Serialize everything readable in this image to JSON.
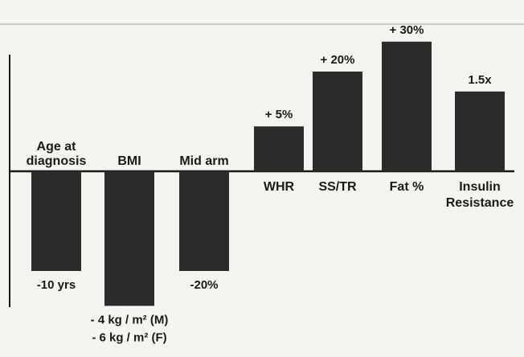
{
  "chart_data": {
    "type": "bar",
    "title": "",
    "xlabel": "",
    "ylabel": "",
    "baseline": 0,
    "categories": [
      {
        "name": "Age at diagnosis",
        "label_lines": [
          "Age at",
          "diagnosis"
        ],
        "value": -10,
        "value_lines": [
          "-10 yrs"
        ]
      },
      {
        "name": "BMI",
        "label_lines": [
          "BMI"
        ],
        "value": -13.5,
        "value_lines": [
          "- 4 kg / m² (M)",
          "- 6 kg / m² (F)"
        ]
      },
      {
        "name": "Mid arm",
        "label_lines": [
          "Mid arm"
        ],
        "value": -10,
        "value_lines": [
          "-20%"
        ]
      },
      {
        "name": "WHR",
        "label_lines": [
          "WHR"
        ],
        "value": 4.5,
        "value_lines": [
          "+ 5%"
        ]
      },
      {
        "name": "SS/TR",
        "label_lines": [
          "SS/TR"
        ],
        "value": 10,
        "value_lines": [
          "+ 20%"
        ]
      },
      {
        "name": "Fat %",
        "label_lines": [
          "Fat %"
        ],
        "value": 13,
        "value_lines": [
          "+ 30%"
        ]
      },
      {
        "name": "Insulin Resistance",
        "label_lines": [
          "Insulin",
          "Resistance"
        ],
        "value": 8,
        "value_lines": [
          "1.5x"
        ]
      }
    ]
  }
}
